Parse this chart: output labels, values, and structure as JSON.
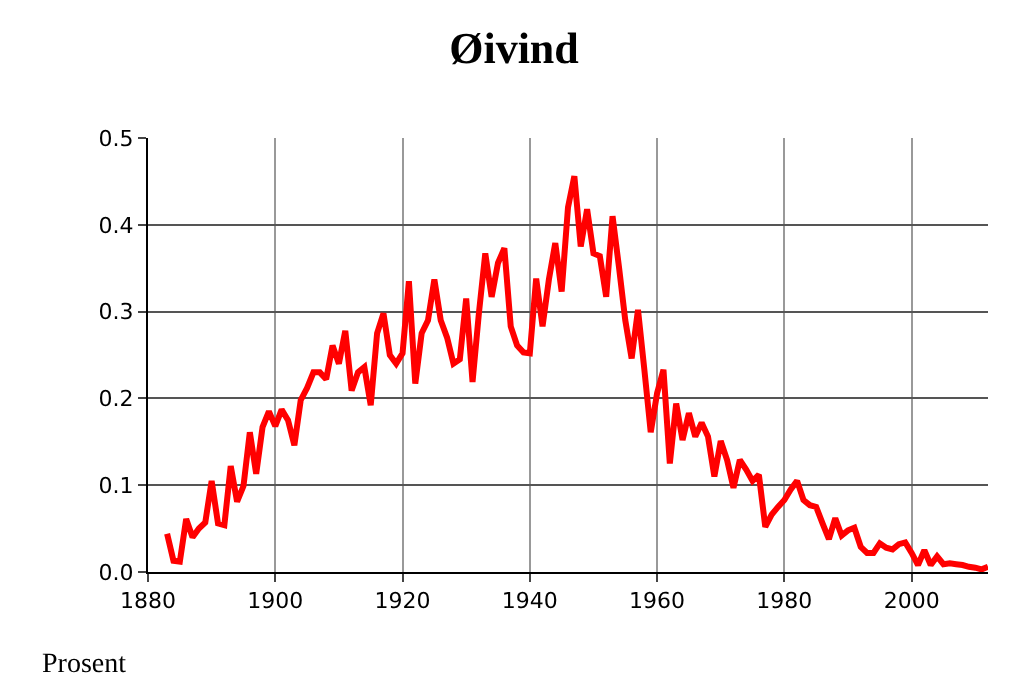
{
  "chart_data": {
    "type": "line",
    "title": "Øivind",
    "annotations": [
      "Prosent"
    ],
    "x": [
      1883,
      1884,
      1885,
      1886,
      1887,
      1888,
      1889,
      1890,
      1891,
      1892,
      1893,
      1894,
      1895,
      1896,
      1897,
      1898,
      1899,
      1900,
      1901,
      1902,
      1903,
      1904,
      1905,
      1906,
      1907,
      1908,
      1909,
      1910,
      1911,
      1912,
      1913,
      1914,
      1915,
      1916,
      1917,
      1918,
      1919,
      1920,
      1921,
      1922,
      1923,
      1924,
      1925,
      1926,
      1927,
      1928,
      1929,
      1930,
      1931,
      1932,
      1933,
      1934,
      1935,
      1936,
      1937,
      1938,
      1939,
      1940,
      1941,
      1942,
      1943,
      1944,
      1945,
      1946,
      1947,
      1948,
      1949,
      1950,
      1951,
      1952,
      1953,
      1954,
      1955,
      1956,
      1957,
      1958,
      1959,
      1960,
      1961,
      1962,
      1963,
      1964,
      1965,
      1966,
      1967,
      1968,
      1969,
      1970,
      1971,
      1972,
      1973,
      1974,
      1975,
      1976,
      1977,
      1978,
      1979,
      1980,
      1981,
      1982,
      1983,
      1984,
      1985,
      1986,
      1987,
      1988,
      1989,
      1990,
      1991,
      1992,
      1993,
      1994,
      1995,
      1996,
      1997,
      1998,
      1999,
      2000,
      2001,
      2002,
      2003,
      2004,
      2005,
      2006,
      2007,
      2008,
      2009,
      2010,
      2011,
      2012
    ],
    "series": [
      {
        "color": "#ff0000",
        "values": [
          0.044,
          0.013,
          0.012,
          0.061,
          0.04,
          0.05,
          0.057,
          0.105,
          0.056,
          0.054,
          0.122,
          0.081,
          0.099,
          0.161,
          0.113,
          0.167,
          0.185,
          0.168,
          0.187,
          0.175,
          0.146,
          0.198,
          0.212,
          0.23,
          0.23,
          0.222,
          0.261,
          0.24,
          0.278,
          0.209,
          0.23,
          0.236,
          0.192,
          0.275,
          0.298,
          0.25,
          0.24,
          0.252,
          0.335,
          0.217,
          0.275,
          0.29,
          0.337,
          0.29,
          0.27,
          0.24,
          0.245,
          0.315,
          0.219,
          0.298,
          0.367,
          0.317,
          0.356,
          0.373,
          0.283,
          0.261,
          0.253,
          0.252,
          0.338,
          0.283,
          0.337,
          0.379,
          0.323,
          0.42,
          0.456,
          0.375,
          0.418,
          0.367,
          0.364,
          0.317,
          0.41,
          0.352,
          0.29,
          0.246,
          0.302,
          0.233,
          0.161,
          0.206,
          0.233,
          0.125,
          0.194,
          0.152,
          0.183,
          0.156,
          0.172,
          0.156,
          0.11,
          0.151,
          0.129,
          0.097,
          0.129,
          0.118,
          0.105,
          0.112,
          0.052,
          0.066,
          0.075,
          0.083,
          0.095,
          0.105,
          0.083,
          0.077,
          0.075,
          0.056,
          0.038,
          0.062,
          0.042,
          0.048,
          0.051,
          0.029,
          0.022,
          0.022,
          0.033,
          0.028,
          0.026,
          0.032,
          0.034,
          0.022,
          0.008,
          0.025,
          0.008,
          0.018,
          0.009,
          0.01,
          0.009,
          0.008,
          0.006,
          0.005,
          0.003,
          0.006
        ]
      }
    ],
    "xlim": [
      1880,
      2012
    ],
    "xticks": [
      1880,
      1900,
      1920,
      1940,
      1960,
      1980,
      2000
    ],
    "ylim": [
      0,
      0.5
    ],
    "yticks": [
      {
        "value": 0,
        "label": "0.0"
      },
      0.1,
      0.2,
      0.3,
      0.4,
      0.5
    ],
    "grid": true,
    "marker": "none",
    "line_style": "solid"
  }
}
